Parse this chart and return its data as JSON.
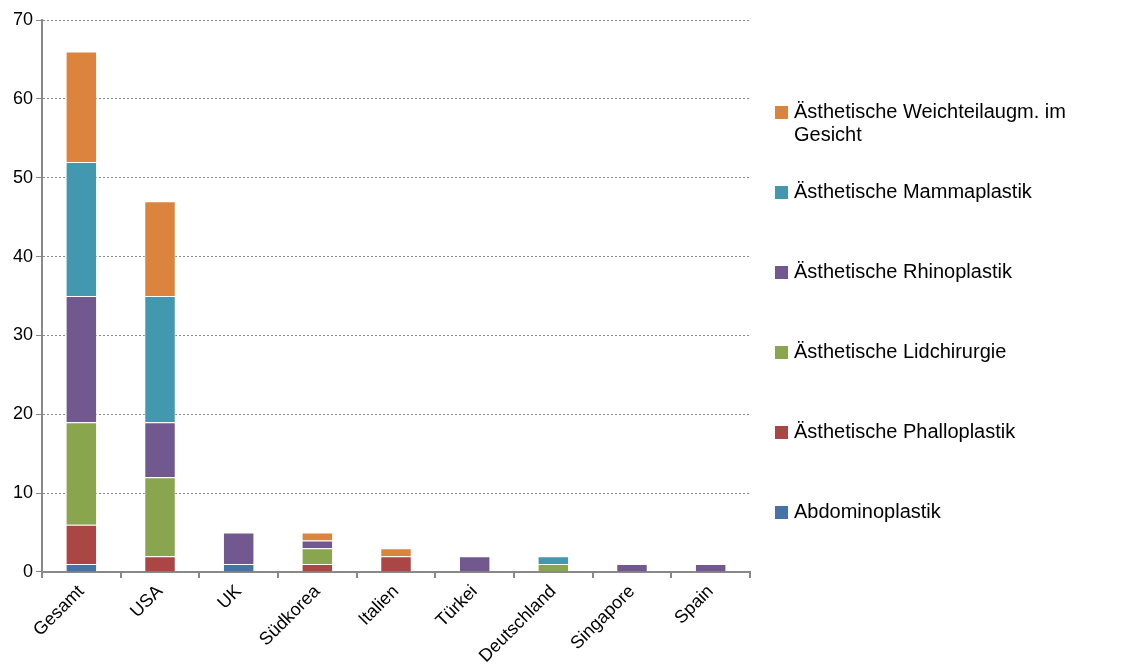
{
  "chart_data": {
    "type": "bar",
    "stacked": true,
    "categories": [
      "Gesamt",
      "USA",
      "UK",
      "Südkorea",
      "Italien",
      "Türkei",
      "Deutschland",
      "Singapore",
      "Spain"
    ],
    "series": [
      {
        "name": "Abdominoplastik",
        "color": "#4572a7",
        "values": [
          1,
          0,
          1,
          0,
          0,
          0,
          0,
          0,
          0
        ]
      },
      {
        "name": "Ästhetische Phalloplastik",
        "color": "#aa4643",
        "values": [
          5,
          2,
          0,
          1,
          2,
          0,
          0,
          0,
          0
        ]
      },
      {
        "name": "Ästhetische Lidchirurgie",
        "color": "#89a54e",
        "values": [
          13,
          10,
          0,
          2,
          0,
          0,
          1,
          0,
          0
        ]
      },
      {
        "name": "Ästhetische Rhinoplastik",
        "color": "#71588f",
        "values": [
          16,
          7,
          4,
          1,
          0,
          2,
          0,
          1,
          1
        ]
      },
      {
        "name": "Ästhetische Mammaplastik",
        "color": "#4198af",
        "values": [
          17,
          16,
          0,
          0,
          0,
          0,
          1,
          0,
          0
        ]
      },
      {
        "name": "Ästhetische Weichteilaugm. im Gesicht",
        "color": "#db843d",
        "values": [
          14,
          12,
          0,
          1,
          1,
          0,
          0,
          0,
          0
        ]
      }
    ],
    "ylim": [
      0,
      70
    ],
    "yticks": [
      0,
      10,
      20,
      30,
      40,
      50,
      60,
      70
    ],
    "grid": "y",
    "legend": "right"
  }
}
